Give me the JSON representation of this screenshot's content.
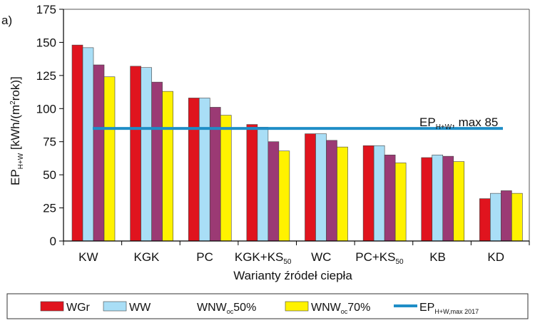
{
  "panel_label": "a)",
  "chart_data": {
    "type": "bar",
    "xlabel": "Warianty źródeł ciepła",
    "ylabel": {
      "main": "EP",
      "sub": "H+W",
      "unit": "[kWh/(m",
      "sup": "2",
      "unit_end": "rok)]"
    },
    "ylim": [
      0,
      175
    ],
    "yticks": [
      0,
      25,
      50,
      75,
      100,
      125,
      150,
      175
    ],
    "grid": false,
    "legend_position": "bottom",
    "categories": [
      {
        "base": "KW",
        "sub": ""
      },
      {
        "base": "KGK",
        "sub": ""
      },
      {
        "base": "PC",
        "sub": ""
      },
      {
        "base": "KGK+KS",
        "sub": "50"
      },
      {
        "base": "WC",
        "sub": ""
      },
      {
        "base": "PC+KS",
        "sub": "50"
      },
      {
        "base": "KB",
        "sub": ""
      },
      {
        "base": "KD",
        "sub": ""
      }
    ],
    "series": [
      {
        "name": "WGr",
        "color": "#e0141e",
        "values": [
          148,
          132,
          108,
          88,
          81,
          72,
          63,
          32
        ]
      },
      {
        "name": "WW",
        "color": "#a9def6",
        "values": [
          146,
          131,
          108,
          86,
          81,
          72,
          65,
          36
        ]
      },
      {
        "name": "WNW",
        "name_sub": "oc",
        "name_end": "50%",
        "color": "#9b3a74",
        "values": [
          133,
          120,
          101,
          75,
          76,
          65,
          64,
          38
        ]
      },
      {
        "name": "WNW",
        "name_sub": "oc",
        "name_end": "70%",
        "color": "#fff200",
        "values": [
          124,
          113,
          95,
          68,
          71,
          59,
          60,
          36
        ]
      }
    ],
    "reference_line": {
      "value": 85,
      "color": "#1f8ec7",
      "label_main": "EP",
      "label_sub": "H+W",
      "label_end": ", max 85",
      "legend_main": "EP",
      "legend_sub": "H+W,max 2017"
    }
  }
}
